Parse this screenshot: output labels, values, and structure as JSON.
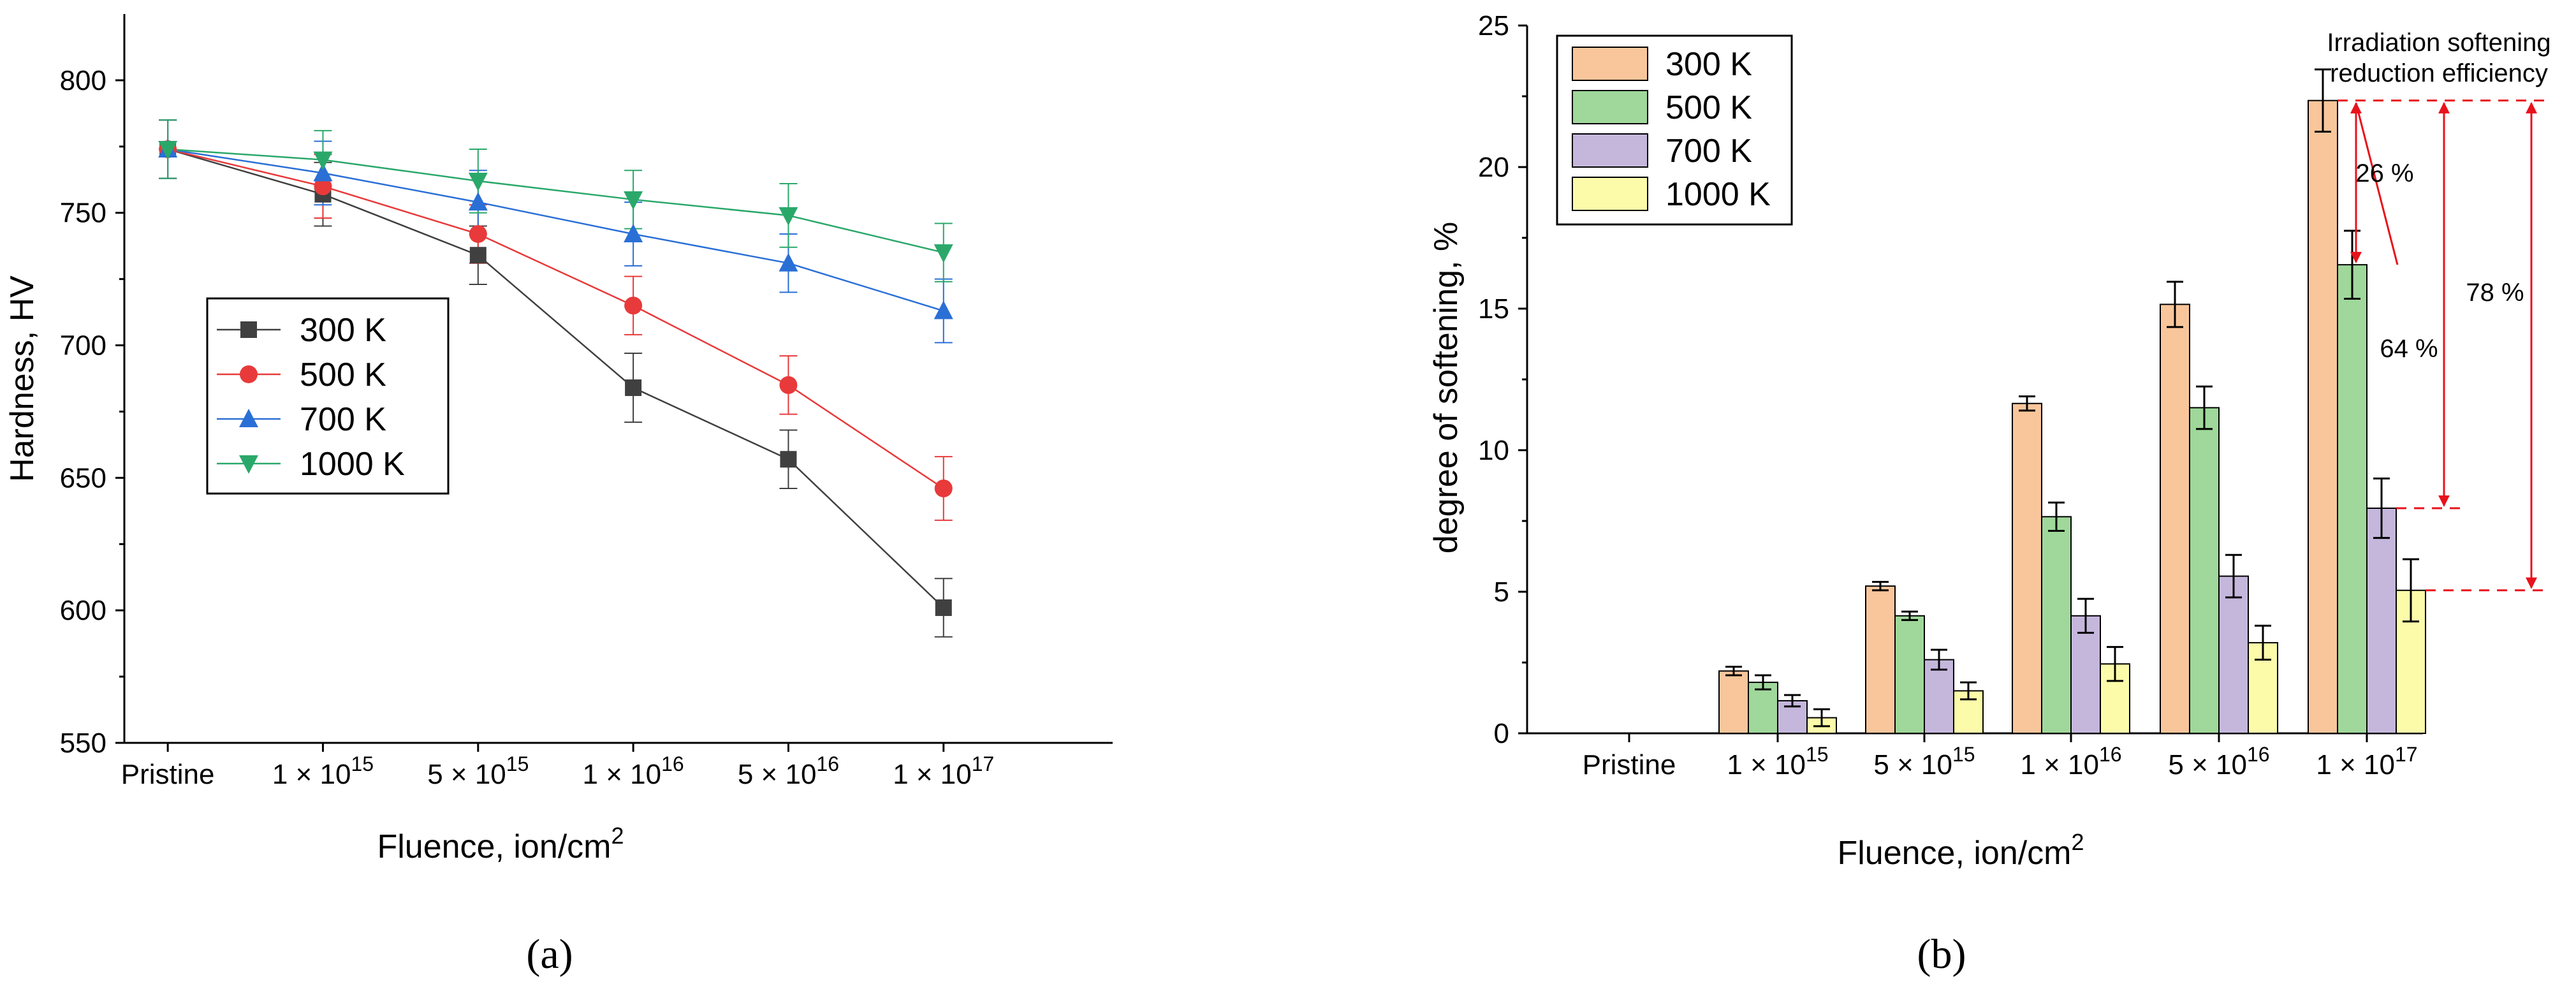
{
  "chart_data": [
    {
      "panel": "(a)",
      "type": "line",
      "categories": [
        "Pristine",
        "1 × 10^15",
        "5 × 10^15",
        "1 × 10^16",
        "5 × 10^16",
        "1 × 10^17"
      ],
      "tick_labels": [
        {
          "base": "Pristine",
          "exp": ""
        },
        {
          "base": "1 × 10",
          "exp": "15"
        },
        {
          "base": "5 × 10",
          "exp": "15"
        },
        {
          "base": "1 × 10",
          "exp": "16"
        },
        {
          "base": "5 × 10",
          "exp": "16"
        },
        {
          "base": "1 × 10",
          "exp": "17"
        }
      ],
      "xlabel": "Fluence, ion/cm",
      "xlabel_sup": "2",
      "ylabel": "Hardness, HV",
      "ylim": [
        550,
        825
      ],
      "yticks": [
        550,
        600,
        650,
        700,
        750,
        800
      ],
      "legend_position": "middle-left",
      "series": [
        {
          "name": "300 K",
          "color": "#404040",
          "marker": "square",
          "values": [
            774,
            757,
            734,
            684,
            657,
            601
          ],
          "errors": [
            11,
            12,
            11,
            13,
            11,
            11
          ]
        },
        {
          "name": "500 K",
          "color": "#e83a3a",
          "marker": "circle",
          "values": [
            774,
            760,
            742,
            715,
            685,
            646
          ],
          "errors": [
            11,
            12,
            11,
            11,
            11,
            12
          ]
        },
        {
          "name": "700 K",
          "color": "#2a6fd6",
          "marker": "triangle-up",
          "values": [
            774,
            765,
            754,
            742,
            731,
            713
          ],
          "errors": [
            11,
            12,
            12,
            12,
            11,
            12
          ]
        },
        {
          "name": "1000 K",
          "color": "#2aa86a",
          "marker": "triangle-down",
          "values": [
            774,
            770,
            762,
            755,
            749,
            735
          ],
          "errors": [
            11,
            11,
            12,
            11,
            12,
            11
          ]
        }
      ]
    },
    {
      "panel": "(b)",
      "type": "bar",
      "categories": [
        "Pristine",
        "1 × 10^15",
        "5 × 10^15",
        "1 × 10^16",
        "5 × 10^16",
        "1 × 10^17"
      ],
      "tick_labels": [
        {
          "base": "Pristine",
          "exp": ""
        },
        {
          "base": "1 × 10",
          "exp": "15"
        },
        {
          "base": "5 × 10",
          "exp": "15"
        },
        {
          "base": "1 × 10",
          "exp": "16"
        },
        {
          "base": "5 × 10",
          "exp": "16"
        },
        {
          "base": "1 × 10",
          "exp": "17"
        }
      ],
      "xlabel": "Fluence, ion/cm",
      "xlabel_sup": "2",
      "ylabel": "degree of softening, %",
      "ylim": [
        0,
        25
      ],
      "yticks": [
        0,
        5,
        10,
        15,
        20,
        25
      ],
      "legend_position": "top-left",
      "series": [
        {
          "name": "300 K",
          "color": "#f9c69b",
          "values": [
            0,
            2.2,
            5.2,
            11.65,
            15.15,
            22.35
          ],
          "errors": [
            0,
            0.15,
            0.15,
            0.25,
            0.8,
            1.1
          ]
        },
        {
          "name": "500 K",
          "color": "#9fd89a",
          "values": [
            0,
            1.8,
            4.15,
            7.65,
            11.5,
            16.55
          ],
          "errors": [
            0,
            0.25,
            0.15,
            0.5,
            0.75,
            1.2
          ]
        },
        {
          "name": "700 K",
          "color": "#c5b7dc",
          "values": [
            0,
            1.15,
            2.6,
            4.15,
            5.55,
            7.95
          ],
          "errors": [
            0,
            0.2,
            0.35,
            0.6,
            0.75,
            1.05
          ]
        },
        {
          "name": "1000 K",
          "color": "#fbfbaa",
          "values": [
            0,
            0.55,
            1.5,
            2.45,
            3.2,
            5.05
          ],
          "errors": [
            0,
            0.3,
            0.3,
            0.6,
            0.6,
            1.1
          ]
        }
      ],
      "annotations": {
        "title_line1": "Irradiation softening",
        "title_line2": "reduction efficiency",
        "arrow_color": "#e8121c",
        "reduction_500K": "26 %",
        "reduction_700K": "64 %",
        "reduction_1000K": "78 %"
      }
    }
  ],
  "panel_labels": {
    "a": "(a)",
    "b": "(b)"
  }
}
